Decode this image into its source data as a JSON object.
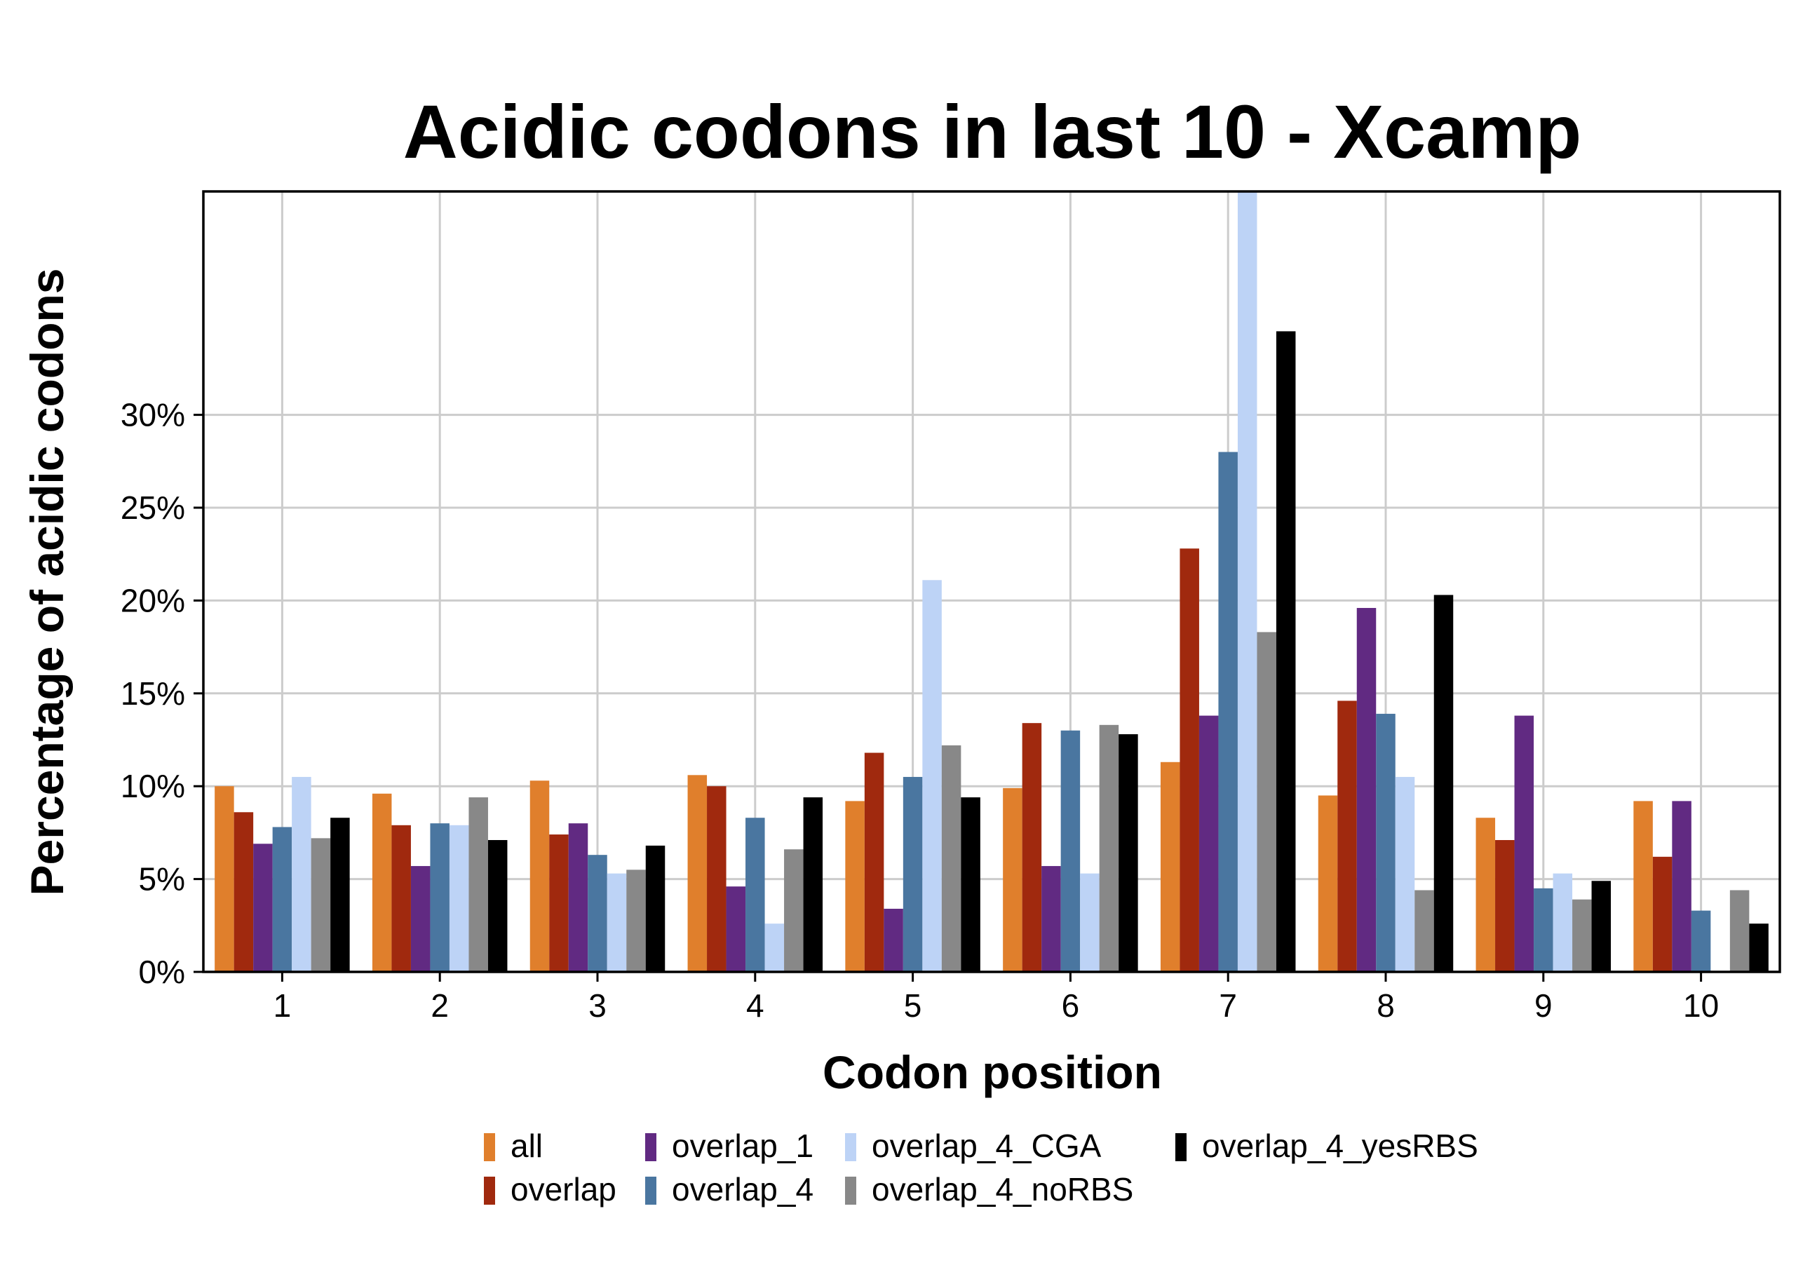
{
  "chart_data": {
    "type": "bar",
    "title": "Acidic codons in last 10 - Xcamp",
    "xlabel": "Codon position",
    "ylabel": "Percentage of acidic codons",
    "categories": [
      "1",
      "2",
      "3",
      "4",
      "5",
      "6",
      "7",
      "8",
      "9",
      "10"
    ],
    "y_ticks": [
      "0%",
      "5%",
      "10%",
      "15%",
      "20%",
      "25%",
      "30%"
    ],
    "ylim": [
      0,
      42
    ],
    "grid": true,
    "legend_position": "bottom",
    "series": [
      {
        "name": "all",
        "color": "#E07F2C",
        "values": [
          10.0,
          9.6,
          10.3,
          10.6,
          9.2,
          9.9,
          11.3,
          9.5,
          8.3,
          9.2
        ]
      },
      {
        "name": "overlap",
        "color": "#A0290E",
        "values": [
          8.6,
          7.9,
          7.4,
          10.0,
          11.8,
          13.4,
          22.8,
          14.6,
          7.1,
          6.2
        ]
      },
      {
        "name": "overlap_1",
        "color": "#612A82",
        "values": [
          6.9,
          5.7,
          8.0,
          4.6,
          3.4,
          5.7,
          13.8,
          19.6,
          13.8,
          9.2
        ]
      },
      {
        "name": "overlap_4",
        "color": "#4A76A0",
        "values": [
          7.8,
          8.0,
          6.3,
          8.3,
          10.5,
          13.0,
          28.0,
          13.9,
          4.5,
          3.3
        ]
      },
      {
        "name": "overlap_4_CGA",
        "color": "#BDD3F6",
        "values": [
          10.5,
          7.9,
          5.3,
          2.6,
          21.1,
          5.3,
          42.0,
          10.5,
          5.3,
          0.0
        ]
      },
      {
        "name": "overlap_4_noRBS",
        "color": "#888888",
        "values": [
          7.2,
          9.4,
          5.5,
          6.6,
          12.2,
          13.3,
          18.3,
          4.4,
          3.9,
          4.4
        ]
      },
      {
        "name": "overlap_4_yesRBS",
        "color": "#000000",
        "values": [
          8.3,
          7.1,
          6.8,
          9.4,
          9.4,
          12.8,
          34.5,
          20.3,
          4.9,
          2.6
        ]
      }
    ]
  }
}
